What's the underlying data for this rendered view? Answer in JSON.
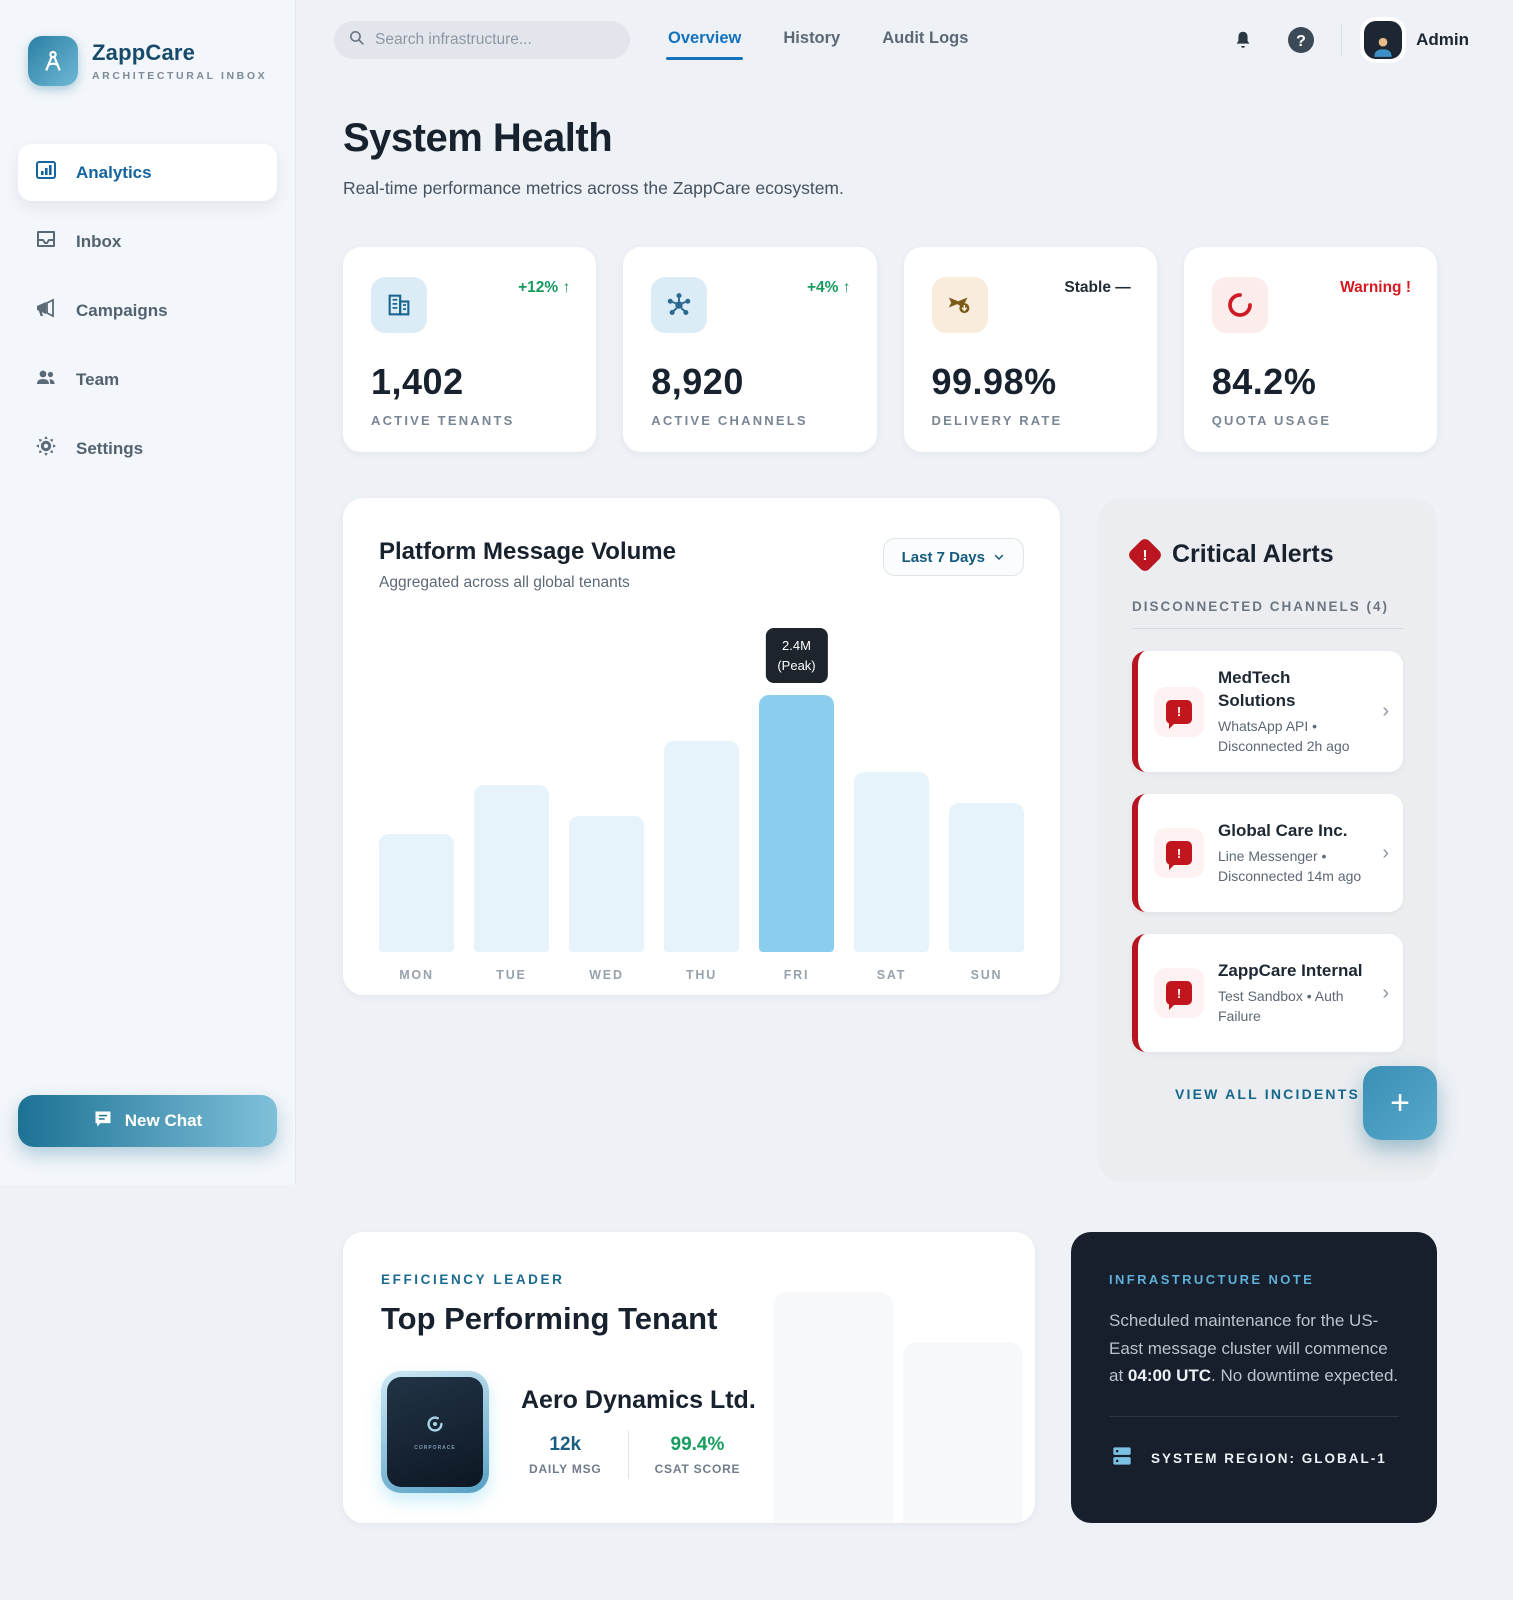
{
  "brand": {
    "name": "ZappCare",
    "tagline": "ARCHITECTURAL INBOX"
  },
  "sidebar": {
    "items": [
      {
        "label": "Analytics",
        "icon": "bar-chart-icon",
        "active": true
      },
      {
        "label": "Inbox",
        "icon": "inbox-icon",
        "active": false
      },
      {
        "label": "Campaigns",
        "icon": "megaphone-icon",
        "active": false
      },
      {
        "label": "Team",
        "icon": "people-icon",
        "active": false
      },
      {
        "label": "Settings",
        "icon": "gear-icon",
        "active": false
      }
    ],
    "new_chat_label": "New Chat"
  },
  "topbar": {
    "search_placeholder": "Search infrastructure...",
    "tabs": [
      {
        "label": "Overview",
        "active": true
      },
      {
        "label": "History",
        "active": false
      },
      {
        "label": "Audit Logs",
        "active": false
      }
    ],
    "user_name": "Admin"
  },
  "page": {
    "title": "System Health",
    "subtitle": "Real-time performance metrics across the ZappCare ecosystem."
  },
  "stats": [
    {
      "value": "1,402",
      "label": "ACTIVE TENANTS",
      "trend": "+12% ↑",
      "trend_type": "up",
      "icon": "building-icon"
    },
    {
      "value": "8,920",
      "label": "ACTIVE CHANNELS",
      "trend": "+4% ↑",
      "trend_type": "up",
      "icon": "hub-icon"
    },
    {
      "value": "99.98%",
      "label": "DELIVERY RATE",
      "trend": "Stable —",
      "trend_type": "neutral",
      "icon": "send-icon"
    },
    {
      "value": "84.2%",
      "label": "QUOTA USAGE",
      "trend": "Warning !",
      "trend_type": "warning",
      "icon": "loader-icon"
    }
  ],
  "chart": {
    "title": "Platform Message Volume",
    "subtitle": "Aggregated across all global tenants",
    "range_label": "Last 7 Days",
    "range_caret": "⌄"
  },
  "chart_data": {
    "type": "bar",
    "title": "Platform Message Volume",
    "categories": [
      "MON",
      "TUE",
      "WED",
      "THU",
      "FRI",
      "SAT",
      "SUN"
    ],
    "values_millions": [
      1.1,
      1.6,
      1.3,
      2.0,
      2.4,
      1.7,
      1.4
    ],
    "heights_pct": [
      46,
      65,
      53,
      82,
      100,
      70,
      58
    ],
    "highlight_index": 4,
    "tooltip": {
      "line1": "2.4M",
      "line2": "(Peak)"
    },
    "bar_color": "#e6f3fb",
    "highlight_color": "#8bcdec",
    "xlabel": "",
    "ylabel": "",
    "grid": false,
    "legend": "none"
  },
  "alerts": {
    "title": "Critical Alerts",
    "section_label": "DISCONNECTED CHANNELS (4)",
    "items": [
      {
        "name": "MedTech Solutions",
        "detail": "WhatsApp API • Disconnected 2h ago"
      },
      {
        "name": "Global Care Inc.",
        "detail": "Line Messenger • Disconnected 14m ago"
      },
      {
        "name": "ZappCare Internal",
        "detail": "Test Sandbox • Auth Failure"
      }
    ],
    "footer_link": "VIEW ALL INCIDENTS",
    "accent_color": "#b6151f"
  },
  "fab": {
    "label": "+"
  },
  "tenant": {
    "eyebrow": "EFFICIENCY LEADER",
    "title": "Top Performing Tenant",
    "name": "Aero Dynamics Ltd.",
    "logo_word": "CORPORACE",
    "stats": [
      {
        "value": "12k",
        "label": "DAILY MSG",
        "color": "teal"
      },
      {
        "value": "99.4%",
        "label": "CSAT SCORE",
        "color": "green"
      }
    ]
  },
  "note": {
    "eyebrow": "INFRASTRUCTURE NOTE",
    "body_pre": "Scheduled maintenance for the US-East message cluster will commence at ",
    "body_bold": "04:00 UTC",
    "body_post": ". No downtime expected.",
    "footer": "SYSTEM REGION: GLOBAL-1"
  },
  "colors": {
    "brand_teal": "#1d7294",
    "active_blue": "#1472bd",
    "green": "#17995e",
    "red": "#d51a22",
    "dark_card": "#161f2b"
  }
}
